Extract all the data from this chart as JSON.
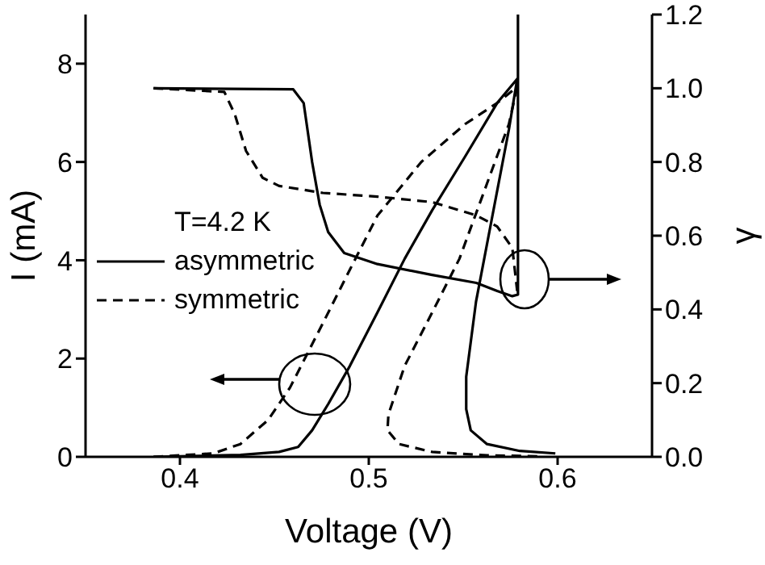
{
  "chart_data": {
    "type": "line",
    "xlabel": "Voltage (V)",
    "ylabel": "I (mA)",
    "y2label": "γ",
    "legend_title": "T=4.2 K",
    "legend": "left",
    "xlim": [
      0.35,
      0.65
    ],
    "xticks": [
      0.4,
      0.5,
      0.6
    ],
    "ylim": [
      0,
      9
    ],
    "yticks": [
      0,
      2,
      4,
      6,
      8
    ],
    "y2lim": [
      0,
      1.2
    ],
    "y2ticks": [
      {
        "value": 0,
        "label": "0.0"
      },
      {
        "value": 0.2,
        "label": "0.2"
      },
      {
        "value": 0.4,
        "label": "0.4"
      },
      {
        "value": 0.6,
        "label": "0.6"
      },
      {
        "value": 0.8,
        "label": "0.8"
      },
      {
        "value": 1.0,
        "label": "1.0"
      },
      {
        "value": 1.2,
        "label": "1.2"
      }
    ],
    "series": [
      {
        "name": "asymmetric",
        "color": "#000000",
        "line_style": "solid",
        "x": [
          0.386,
          0.432,
          0.4525,
          0.4626,
          0.47,
          0.4786,
          0.49,
          0.5046,
          0.519,
          0.5336,
          0.551,
          0.568,
          0.5786,
          0.5742,
          0.5655,
          0.5568,
          0.5516,
          0.5516,
          0.554,
          0.5626,
          0.58,
          0.5988
        ],
        "values": [
          0,
          0.04,
          0.1,
          0.2,
          0.54,
          1.08,
          1.85,
          2.94,
          4.03,
          5.02,
          6.11,
          7.2,
          7.69,
          6.66,
          4.91,
          3.16,
          1.63,
          0.97,
          0.54,
          0.26,
          0.12,
          0.07
        ]
      },
      {
        "name": "symmetric",
        "color": "#000000",
        "line_style": "dashed",
        "x": [
          0.386,
          0.4177,
          0.432,
          0.4467,
          0.4583,
          0.4757,
          0.49,
          0.5046,
          0.5278,
          0.551,
          0.568,
          0.5786,
          0.5742,
          0.5626,
          0.548,
          0.5336,
          0.519,
          0.5104,
          0.5099,
          0.516,
          0.5336,
          0.5626,
          0.5916
        ],
        "values": [
          0,
          0.07,
          0.26,
          0.75,
          1.41,
          2.72,
          3.81,
          4.91,
          6.0,
          6.77,
          7.2,
          7.53,
          6.77,
          5.56,
          4.03,
          2.94,
          1.85,
          0.86,
          0.54,
          0.26,
          0.1,
          0.03,
          0.01
        ]
      },
      {
        "color": "#000000",
        "line_style": "solid",
        "axis": "y2",
        "x": [
          0.386,
          0.46,
          0.4655,
          0.47,
          0.474,
          0.4785,
          0.487,
          0.5046,
          0.533,
          0.557,
          0.568,
          0.576,
          0.579,
          0.579
        ],
        "values": [
          1.0,
          0.997,
          0.96,
          0.8,
          0.684,
          0.61,
          0.553,
          0.523,
          0.494,
          0.472,
          0.45,
          0.436,
          0.44,
          1.2
        ]
      },
      {
        "color": "#000000",
        "line_style": "dashed",
        "axis": "y2",
        "x": [
          0.386,
          0.4235,
          0.429,
          0.435,
          0.4438,
          0.4525,
          0.4757,
          0.5046,
          0.5336,
          0.557,
          0.568,
          0.576,
          0.5786
        ],
        "values": [
          1.0,
          0.99,
          0.93,
          0.83,
          0.757,
          0.735,
          0.716,
          0.706,
          0.691,
          0.655,
          0.625,
          0.567,
          0.45
        ]
      }
    ]
  }
}
